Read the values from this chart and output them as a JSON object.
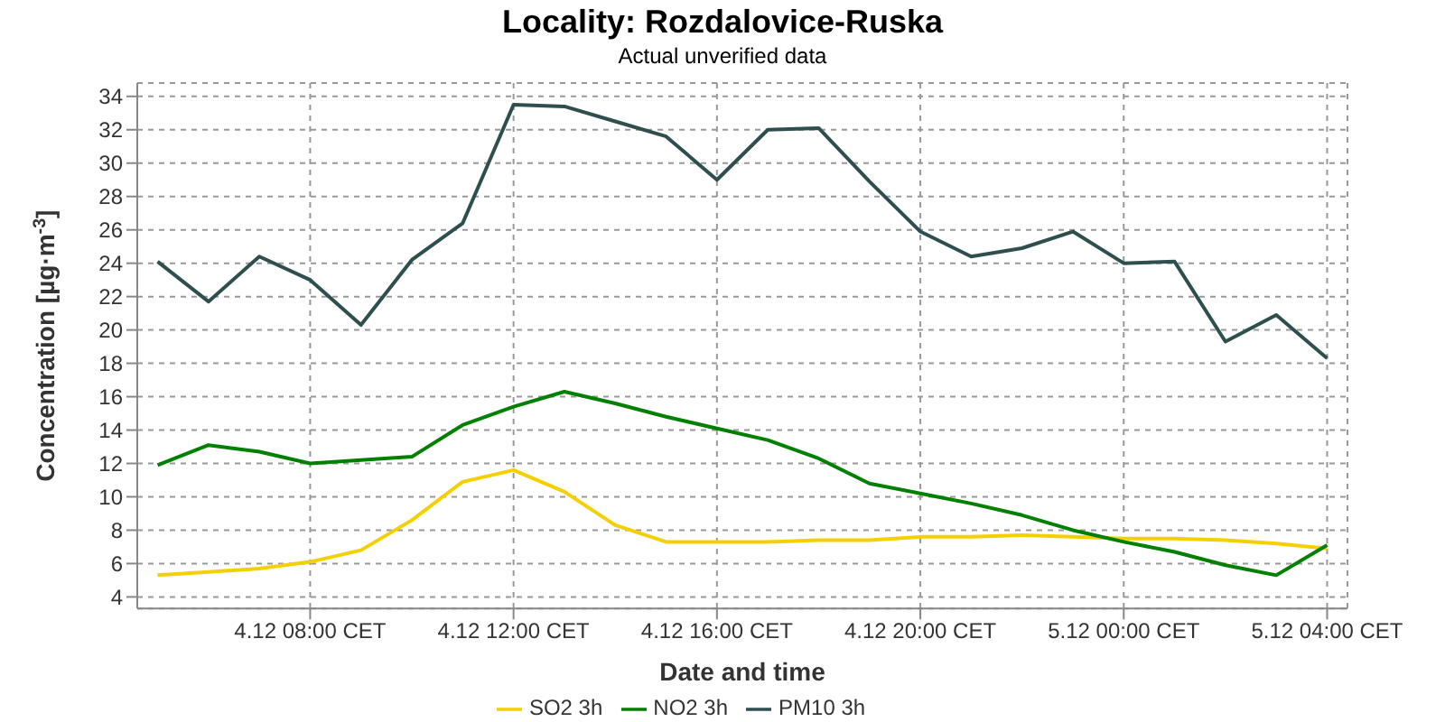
{
  "chart_data": {
    "type": "line",
    "title": "Locality: Rozdalovice-Ruska",
    "subtitle": "Actual unverified data",
    "xlabel": "Date and time",
    "ylabel": "Concentration [µg·m$^{-3}$]",
    "categories": [
      null,
      null,
      null,
      "4.12 08:00 CET",
      null,
      null,
      null,
      "4.12 12:00 CET",
      null,
      null,
      null,
      "4.12 16:00 CET",
      null,
      null,
      null,
      "4.12 20:00 CET",
      null,
      null,
      null,
      "5.12 00:00 CET",
      null,
      null,
      null,
      "5.12 04:00 CET"
    ],
    "series": [
      {
        "name": "SO2 3h",
        "color": "#f5d000",
        "values": [
          5.3,
          5.5,
          5.7,
          6.1,
          6.8,
          8.6,
          10.9,
          11.6,
          10.3,
          8.3,
          7.3,
          7.3,
          7.3,
          7.4,
          7.4,
          7.6,
          7.6,
          7.7,
          7.6,
          7.5,
          7.5,
          7.4,
          7.2,
          6.9
        ]
      },
      {
        "name": "NO2 3h",
        "color": "#008000",
        "values": [
          11.9,
          13.1,
          12.7,
          12.0,
          12.2,
          12.4,
          14.3,
          15.4,
          16.3,
          15.6,
          14.8,
          14.1,
          13.4,
          12.3,
          10.8,
          10.2,
          9.6,
          8.9,
          8.0,
          7.3,
          6.7,
          5.9,
          5.3,
          7.1
        ]
      },
      {
        "name": "PM10 3h",
        "color": "#2f4f4f",
        "values": [
          24.1,
          21.7,
          24.4,
          23.0,
          20.3,
          24.2,
          26.4,
          33.5,
          33.4,
          32.5,
          31.6,
          29.0,
          32.0,
          32.1,
          28.9,
          25.9,
          24.4,
          24.9,
          25.9,
          24.0,
          24.1,
          19.3,
          20.9,
          18.3
        ]
      }
    ],
    "ylim": [
      3.3,
      34.8
    ],
    "yticks": [
      4,
      6,
      8,
      10,
      12,
      14,
      16,
      18,
      20,
      22,
      24,
      26,
      28,
      30,
      32,
      34
    ],
    "grid": true,
    "legend": "bottom",
    "marker": "none",
    "line_style": "solid"
  }
}
